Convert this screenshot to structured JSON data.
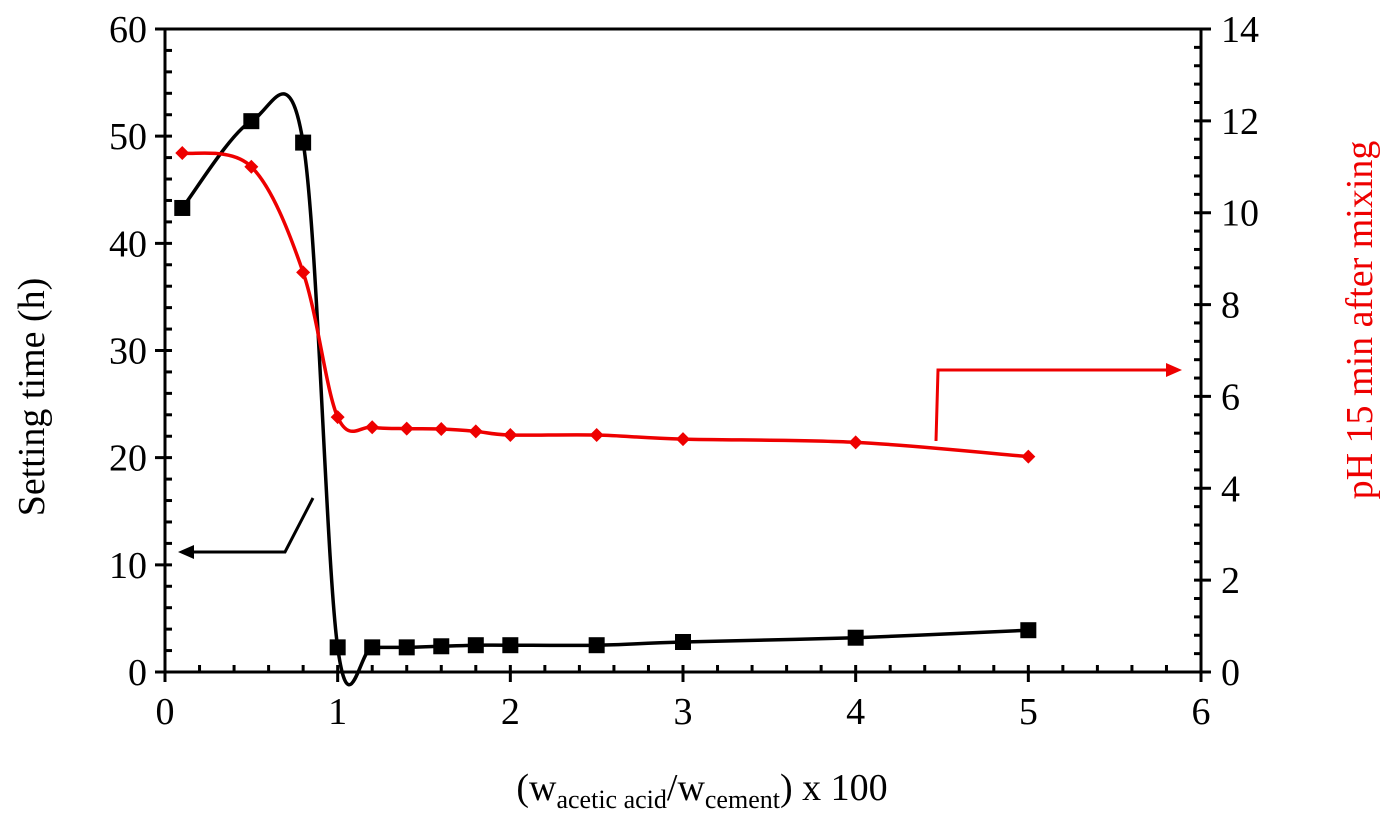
{
  "chart_data": {
    "type": "line",
    "xlabel": {
      "prefix": "(w",
      "sub1": "acetic acid",
      "mid": "/w",
      "sub2": "cement",
      "suffix": ") x 100"
    },
    "ylabel": "Setting time  (h)",
    "y2label": "pH 15 min after mixing",
    "xlim": [
      0,
      6
    ],
    "ylim": [
      0,
      60
    ],
    "y2lim": [
      0,
      14
    ],
    "x_ticks": [
      "0",
      "1",
      "2",
      "3",
      "4",
      "5",
      "6"
    ],
    "y_ticks": [
      "0",
      "10",
      "20",
      "30",
      "40",
      "50",
      "60"
    ],
    "y2_ticks": [
      "0",
      "2",
      "4",
      "6",
      "8",
      "10",
      "12",
      "14"
    ],
    "grid": false,
    "series": [
      {
        "axis": "left",
        "marker": "square",
        "color": "#000000",
        "x": [
          0.1,
          0.5,
          0.8,
          1.0,
          1.2,
          1.4,
          1.6,
          1.8,
          2.0,
          2.5,
          3.0,
          4.0,
          5.0
        ],
        "y": [
          43.3,
          51.4,
          49.4,
          2.3,
          2.3,
          2.3,
          2.4,
          2.5,
          2.5,
          2.5,
          2.8,
          3.2,
          3.9
        ]
      },
      {
        "axis": "right",
        "marker": "diamond",
        "color": "#ee0000",
        "x": [
          0.1,
          0.5,
          0.8,
          1.0,
          1.2,
          1.4,
          1.6,
          1.8,
          2.0,
          2.5,
          3.0,
          4.0,
          5.0
        ],
        "y": [
          11.3,
          11.0,
          8.7,
          5.55,
          5.33,
          5.3,
          5.29,
          5.24,
          5.16,
          5.16,
          5.07,
          5.0,
          4.69
        ]
      }
    ]
  }
}
